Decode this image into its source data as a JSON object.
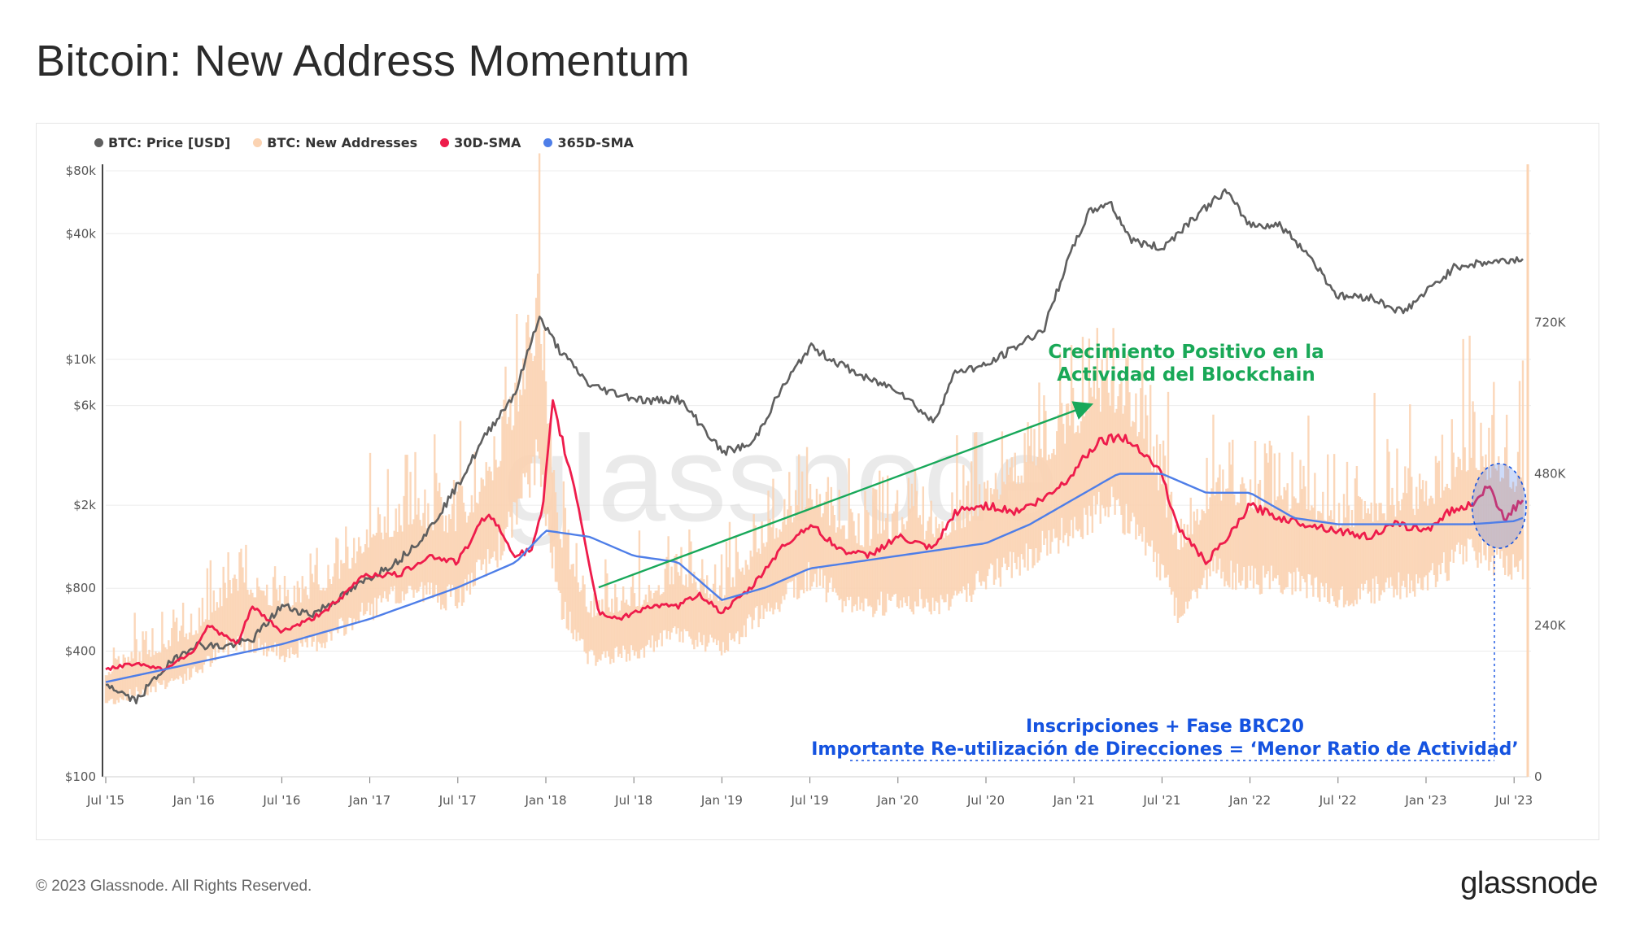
{
  "header": {
    "title": "Bitcoin: New Address Momentum"
  },
  "footer": {
    "copyright": "© 2023 Glassnode. All Rights Reserved.",
    "logo": "glassnode"
  },
  "watermark": "glassnode",
  "colors": {
    "price": "#5f5f5f",
    "new_addresses": "#fbd3b2",
    "sma30": "#ee1c4b",
    "sma365": "#4e7ee8",
    "arrow": "#18a85a",
    "annotation_green": "#19a857",
    "annotation_blue": "#1553e0"
  },
  "chart_data": {
    "type": "line",
    "title": "Bitcoin: New Address Momentum",
    "legend": {
      "placement": "top-left",
      "entries": [
        "BTC: Price [USD]",
        "BTC: New Addresses",
        "30D-SMA",
        "365D-SMA"
      ]
    },
    "x_axis": {
      "ticks": [
        "Jul '15",
        "Jan '16",
        "Jul '16",
        "Jan '17",
        "Jul '17",
        "Jan '18",
        "Jul '18",
        "Jan '19",
        "Jul '19",
        "Jan '20",
        "Jul '20",
        "Jan '21",
        "Jul '21",
        "Jan '22",
        "Jul '22",
        "Jan '23",
        "Jul '23"
      ],
      "range": [
        "2015-07",
        "2023-07"
      ]
    },
    "y_axis_left": {
      "scale": "log",
      "ticks": [
        "$100",
        "$400",
        "$800",
        "$2k",
        "$6k",
        "$10k",
        "$40k",
        "$80k"
      ],
      "tick_values": [
        100,
        400,
        800,
        2000,
        6000,
        10000,
        40000,
        80000
      ],
      "range": [
        100,
        80000
      ]
    },
    "y_axis_right": {
      "scale": "linear",
      "ticks": [
        "0",
        "240K",
        "480K",
        "720K"
      ],
      "tick_values": [
        0,
        240000,
        480000,
        720000
      ],
      "range": [
        0,
        960000
      ]
    },
    "grid": true,
    "series": [
      {
        "name": "BTC: Price [USD]",
        "axis": "left",
        "x": [
          2015.5,
          2015.67,
          2015.83,
          2016.0,
          2016.17,
          2016.33,
          2016.5,
          2016.67,
          2016.83,
          2017.0,
          2017.17,
          2017.33,
          2017.5,
          2017.67,
          2017.83,
          2017.96,
          2018.08,
          2018.25,
          2018.42,
          2018.58,
          2018.75,
          2018.87,
          2019.0,
          2019.17,
          2019.33,
          2019.5,
          2019.67,
          2019.83,
          2020.0,
          2020.2,
          2020.33,
          2020.5,
          2020.67,
          2020.83,
          2020.96,
          2021.08,
          2021.2,
          2021.33,
          2021.5,
          2021.67,
          2021.86,
          2022.0,
          2022.17,
          2022.33,
          2022.5,
          2022.67,
          2022.87,
          2023.0,
          2023.17,
          2023.33,
          2023.5,
          2023.55
        ],
        "values": [
          280,
          230,
          330,
          430,
          420,
          450,
          660,
          600,
          720,
          900,
          1100,
          1500,
          2500,
          4500,
          7000,
          16000,
          11000,
          7500,
          6800,
          6300,
          6500,
          5000,
          3600,
          3900,
          7000,
          11500,
          9500,
          8000,
          7200,
          5000,
          8800,
          9300,
          11500,
          14000,
          29000,
          50000,
          57000,
          37000,
          34000,
          47000,
          64000,
          44000,
          44000,
          32000,
          20000,
          20000,
          16800,
          21000,
          28000,
          29000,
          30000,
          30500
        ]
      },
      {
        "name": "BTC: New Addresses",
        "axis": "right",
        "x": [
          2015.5,
          2015.75,
          2016.0,
          2016.25,
          2016.5,
          2016.75,
          2017.0,
          2017.25,
          2017.5,
          2017.75,
          2017.96,
          2018.08,
          2018.25,
          2018.5,
          2018.75,
          2019.0,
          2019.25,
          2019.5,
          2019.75,
          2020.0,
          2020.25,
          2020.5,
          2020.75,
          2021.0,
          2021.2,
          2021.4,
          2021.6,
          2021.8,
          2022.0,
          2022.25,
          2022.5,
          2022.75,
          2023.0,
          2023.25,
          2023.5,
          2023.55
        ],
        "values": [
          150000,
          180000,
          210000,
          280000,
          250000,
          280000,
          340000,
          380000,
          360000,
          470000,
          650000,
          350000,
          240000,
          250000,
          290000,
          260000,
          340000,
          410000,
          340000,
          360000,
          350000,
          400000,
          450000,
          510000,
          560000,
          490000,
          330000,
          420000,
          400000,
          400000,
          370000,
          380000,
          400000,
          460000,
          420000,
          430000
        ]
      },
      {
        "name": "30D-SMA",
        "axis": "right",
        "x": [
          2015.5,
          2015.67,
          2015.83,
          2016.0,
          2016.08,
          2016.25,
          2016.33,
          2016.5,
          2016.67,
          2016.83,
          2016.96,
          2017.17,
          2017.33,
          2017.5,
          2017.67,
          2017.83,
          2017.92,
          2017.98,
          2018.04,
          2018.17,
          2018.3,
          2018.42,
          2018.58,
          2018.75,
          2018.87,
          2019.0,
          2019.17,
          2019.33,
          2019.5,
          2019.67,
          2019.83,
          2020.0,
          2020.2,
          2020.33,
          2020.5,
          2020.67,
          2020.83,
          2020.96,
          2021.04,
          2021.13,
          2021.25,
          2021.38,
          2021.5,
          2021.58,
          2021.75,
          2021.88,
          2022.0,
          2022.17,
          2022.33,
          2022.5,
          2022.67,
          2022.83,
          2023.0,
          2023.13,
          2023.25,
          2023.35,
          2023.45,
          2023.55
        ],
        "values": [
          170000,
          180000,
          170000,
          200000,
          240000,
          210000,
          270000,
          230000,
          250000,
          280000,
          320000,
          320000,
          350000,
          340000,
          420000,
          350000,
          360000,
          420000,
          590000,
          450000,
          260000,
          250000,
          270000,
          270000,
          290000,
          260000,
          300000,
          360000,
          400000,
          360000,
          350000,
          380000,
          360000,
          420000,
          430000,
          420000,
          440000,
          470000,
          500000,
          530000,
          540000,
          520000,
          480000,
          400000,
          340000,
          380000,
          430000,
          410000,
          400000,
          390000,
          380000,
          400000,
          390000,
          420000,
          430000,
          460000,
          410000,
          440000
        ]
      },
      {
        "name": "365D-SMA",
        "axis": "right",
        "x": [
          2015.5,
          2016.0,
          2016.5,
          2017.0,
          2017.5,
          2017.83,
          2018.0,
          2018.25,
          2018.5,
          2018.75,
          2019.0,
          2019.25,
          2019.5,
          2019.75,
          2020.0,
          2020.25,
          2020.5,
          2020.75,
          2021.0,
          2021.25,
          2021.5,
          2021.75,
          2022.0,
          2022.25,
          2022.5,
          2022.75,
          2023.0,
          2023.25,
          2023.5,
          2023.55
        ],
        "values": [
          150000,
          180000,
          210000,
          250000,
          300000,
          340000,
          390000,
          380000,
          350000,
          340000,
          280000,
          300000,
          330000,
          340000,
          350000,
          360000,
          370000,
          400000,
          440000,
          480000,
          480000,
          450000,
          450000,
          410000,
          400000,
          400000,
          400000,
          400000,
          405000,
          410000
        ]
      }
    ],
    "annotations": [
      {
        "text_lines": [
          "Crecimiento Positivo en la",
          "Actividad del Blockchain"
        ],
        "type": "arrow",
        "from": {
          "x": 2018.3,
          "y": 300000
        },
        "to": {
          "x": 2021.1,
          "y": 590000
        }
      },
      {
        "text_lines": [
          "Inscripciones + Fase BRC20",
          "Importante Re-utilización de Direcciones = ‘Menor Ratio de Actividad’"
        ],
        "type": "highlight-ellipse",
        "x_range": [
          2023.28,
          2023.55
        ]
      }
    ]
  }
}
